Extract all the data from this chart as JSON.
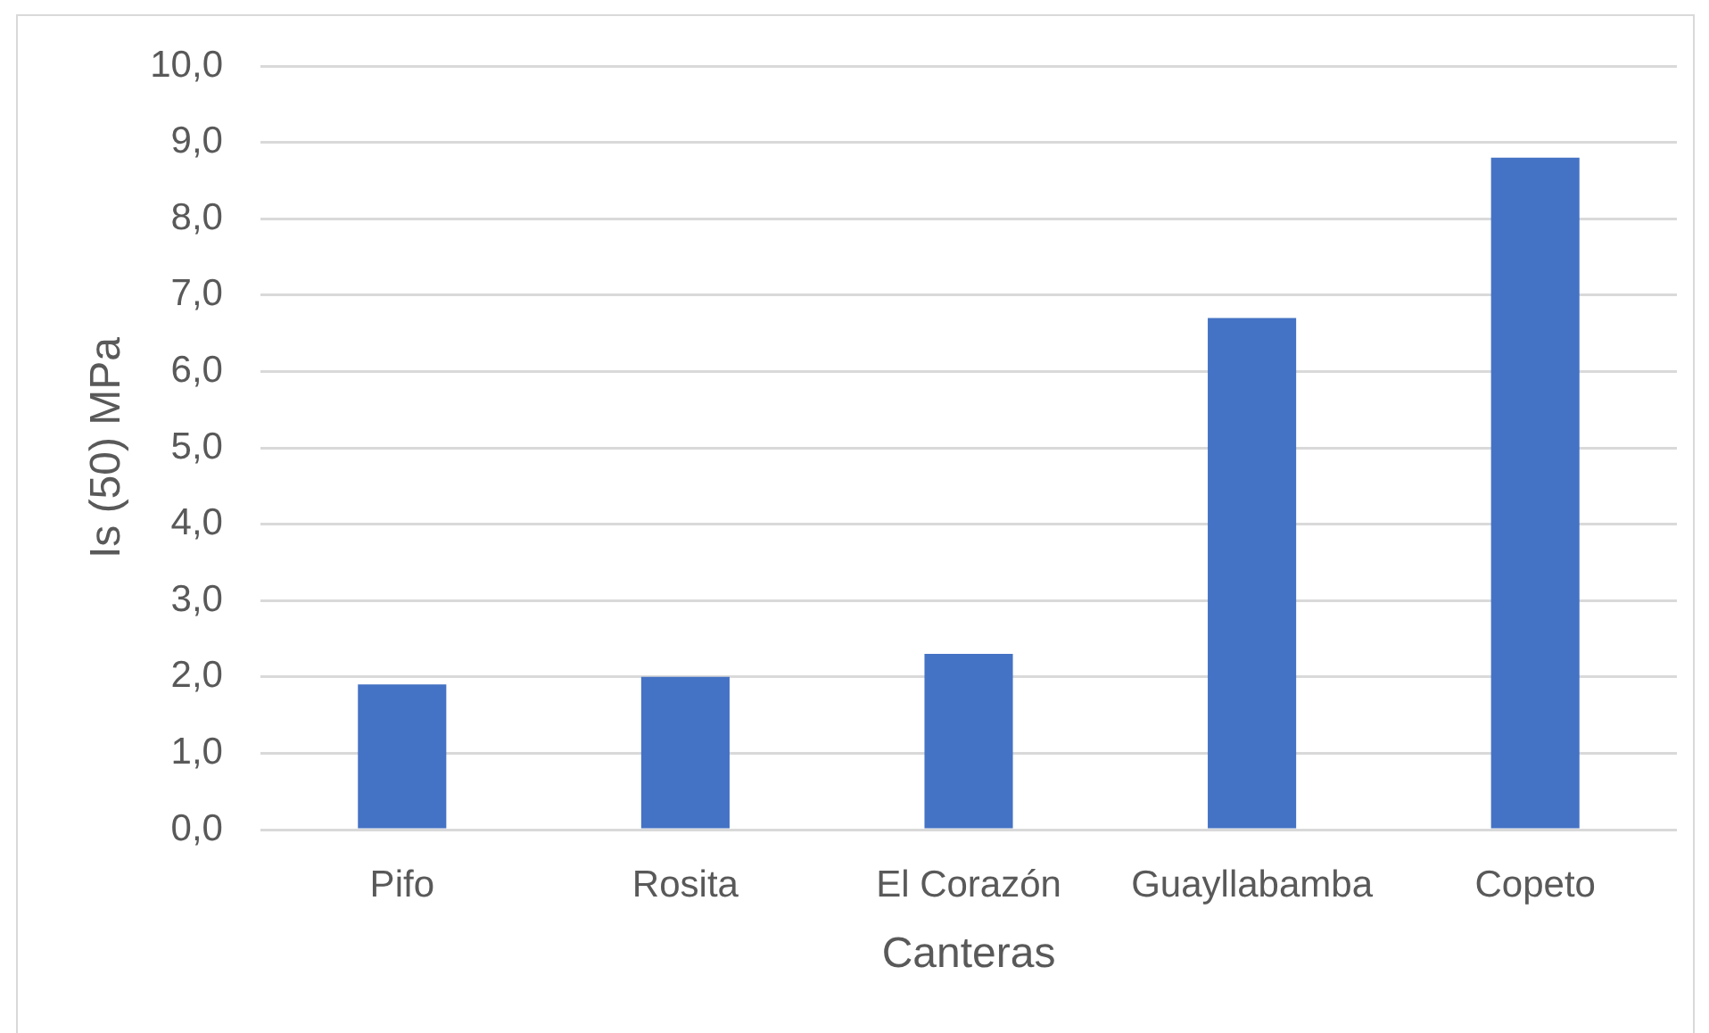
{
  "chart_data": {
    "type": "bar",
    "xlabel": "Canteras",
    "ylabel": "Is (50) MPa",
    "categories": [
      "Pifo",
      "Rosita",
      "El Corazón",
      "Guayllabamba",
      "Copeto"
    ],
    "values": [
      1.9,
      2.0,
      2.3,
      6.7,
      8.8
    ],
    "color": "#4472c4",
    "ylim": [
      0,
      10
    ],
    "yticks": [
      {
        "value": 0,
        "label": "0,0"
      },
      {
        "value": 1,
        "label": "1,0"
      },
      {
        "value": 2,
        "label": "2,0"
      },
      {
        "value": 3,
        "label": "3,0"
      },
      {
        "value": 4,
        "label": "4,0"
      },
      {
        "value": 5,
        "label": "5,0"
      },
      {
        "value": 6,
        "label": "6,0"
      },
      {
        "value": 7,
        "label": "7,0"
      },
      {
        "value": 8,
        "label": "8,0"
      },
      {
        "value": 9,
        "label": "9,0"
      },
      {
        "value": 10,
        "label": "10,0"
      }
    ],
    "grid": "y"
  }
}
